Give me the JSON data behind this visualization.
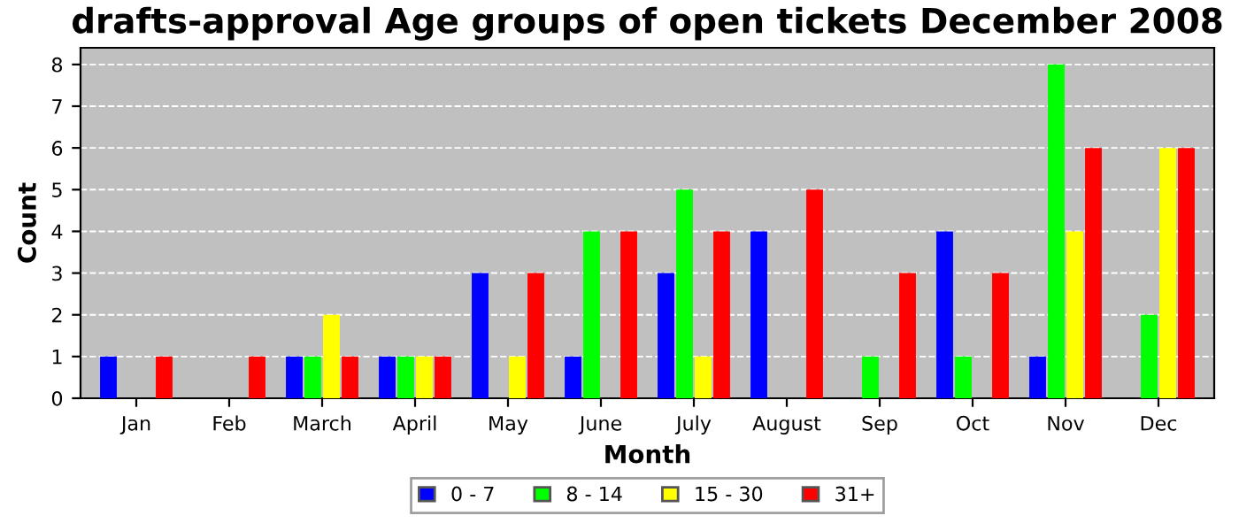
{
  "chart_data": {
    "type": "bar",
    "title": "drafts-approval Age groups of open tickets December 2008",
    "xlabel": "Month",
    "ylabel": "Count",
    "categories": [
      "Jan",
      "Feb",
      "March",
      "April",
      "May",
      "June",
      "July",
      "August",
      "Sep",
      "Oct",
      "Nov",
      "Dec"
    ],
    "series": [
      {
        "name": "0 - 7",
        "color": "#0000ff",
        "values": [
          1,
          0,
          1,
          1,
          3,
          1,
          3,
          4,
          0,
          4,
          1,
          0
        ]
      },
      {
        "name": "8 - 14",
        "color": "#00ff00",
        "values": [
          0,
          0,
          1,
          1,
          0,
          4,
          5,
          0,
          1,
          1,
          8,
          2
        ]
      },
      {
        "name": "15 - 30",
        "color": "#ffff00",
        "values": [
          0,
          0,
          2,
          1,
          1,
          0,
          1,
          0,
          0,
          0,
          4,
          6
        ]
      },
      {
        "name": "31+",
        "color": "#ff0000",
        "values": [
          1,
          1,
          1,
          1,
          3,
          4,
          4,
          5,
          3,
          3,
          6,
          6
        ]
      }
    ],
    "ylim": [
      0,
      8.4
    ],
    "yticks": [
      0,
      1,
      2,
      3,
      4,
      5,
      6,
      7,
      8
    ],
    "grid": "y",
    "legend": "bottom"
  }
}
